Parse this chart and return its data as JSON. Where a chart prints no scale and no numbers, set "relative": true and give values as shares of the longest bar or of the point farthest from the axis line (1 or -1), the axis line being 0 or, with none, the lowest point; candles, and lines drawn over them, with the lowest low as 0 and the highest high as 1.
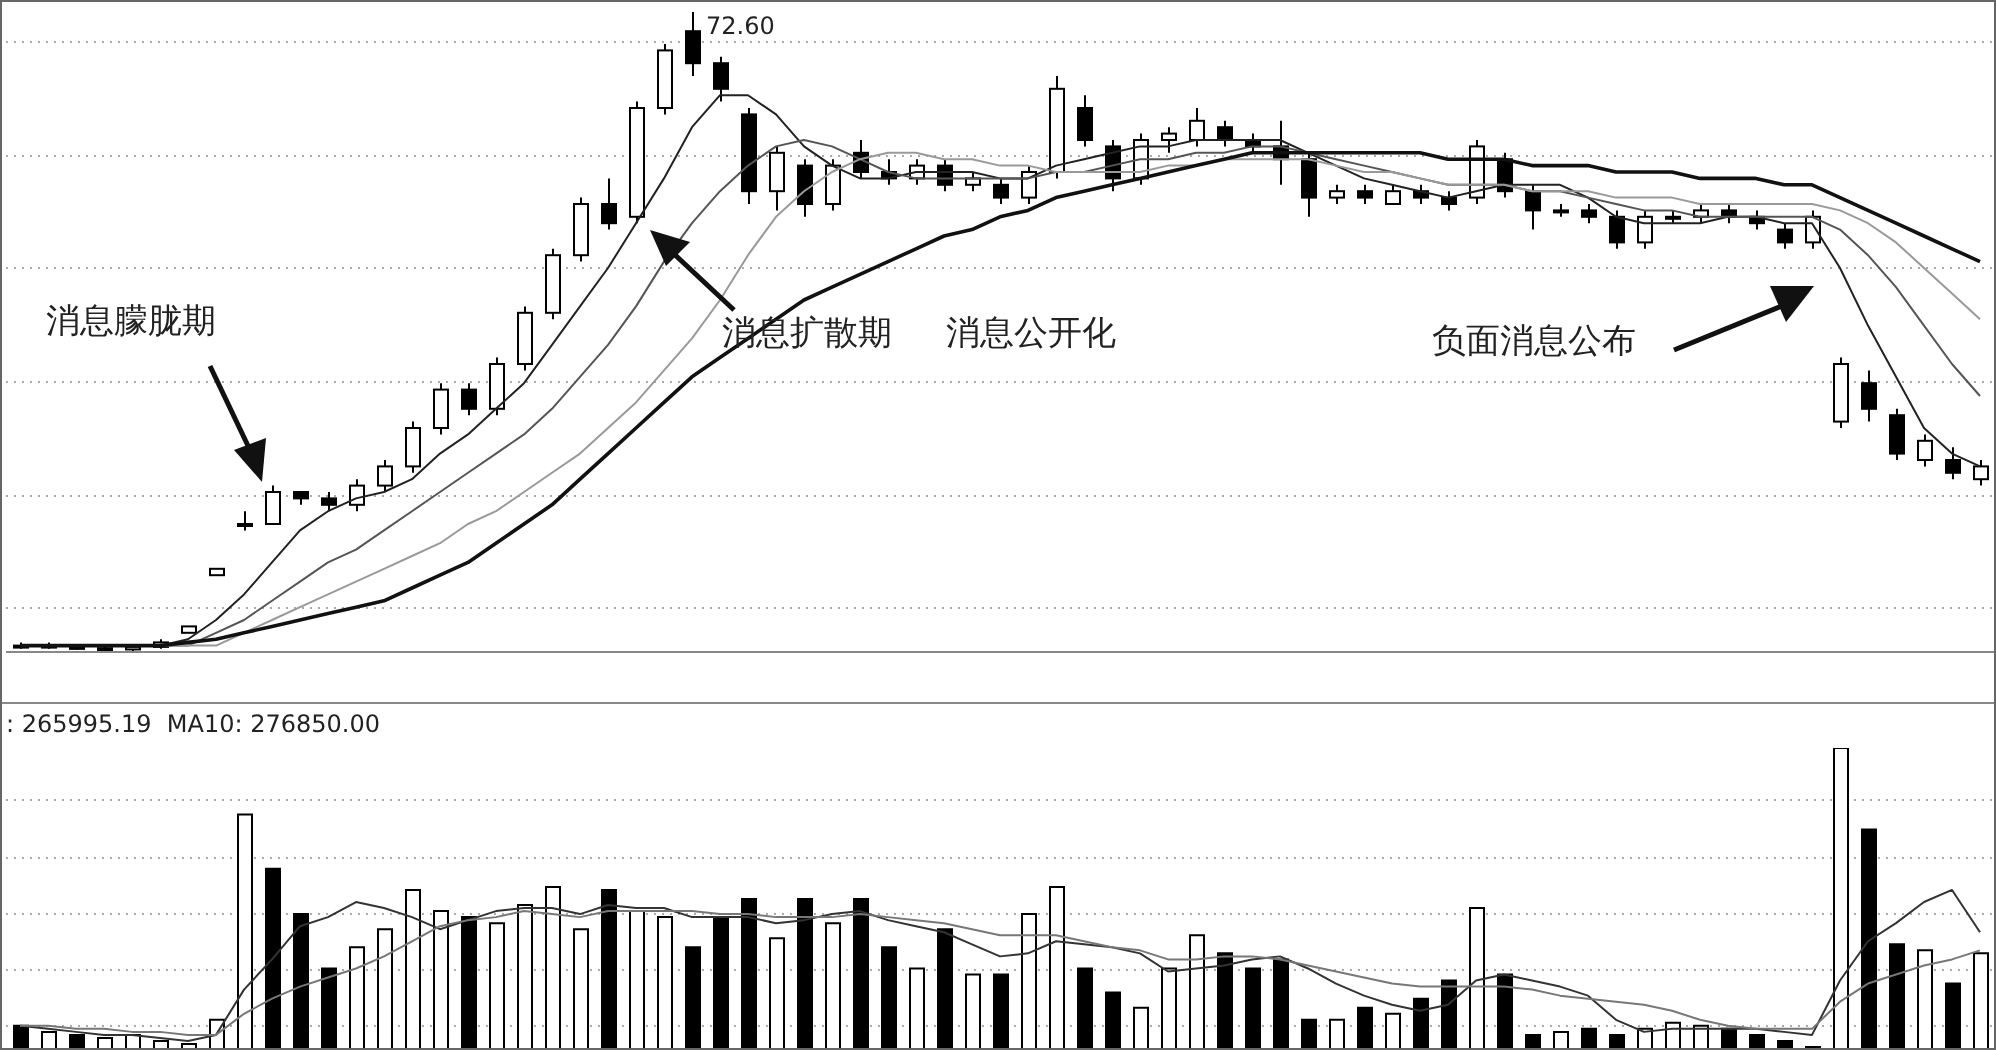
{
  "chart_data": [
    {
      "type": "candlestick",
      "relative": true,
      "grid": "y",
      "categories": [
        null,
        null,
        null,
        null,
        null,
        null,
        null,
        null,
        null,
        null,
        null,
        null,
        null,
        null,
        null,
        null,
        null,
        null,
        null,
        null,
        null,
        null,
        null,
        null,
        null,
        null,
        null,
        null,
        null,
        null,
        null,
        null,
        null,
        null,
        null,
        null,
        null,
        null,
        null,
        null,
        null,
        null,
        null,
        null,
        null,
        null,
        null,
        null,
        null,
        null,
        null,
        null,
        null,
        null,
        null,
        null,
        null,
        null,
        null,
        null,
        null,
        null,
        null,
        null,
        null,
        null,
        null,
        null,
        null,
        null,
        null
      ],
      "annotations": [
        "72.60",
        "消息朦胧期",
        "消息扩散期",
        "消息公开化",
        "负面消息公布"
      ],
      "ohlc": [
        [
          0.01,
          0.015,
          0.005,
          0.01
        ],
        [
          0.01,
          0.015,
          0.005,
          0.008
        ],
        [
          0.008,
          0.012,
          0.004,
          0.006
        ],
        [
          0.006,
          0.01,
          0.0,
          0.004
        ],
        [
          0.004,
          0.01,
          0.0,
          0.008
        ],
        [
          0.008,
          0.02,
          0.005,
          0.015
        ],
        [
          0.03,
          0.04,
          0.03,
          0.04
        ],
        [
          0.12,
          0.13,
          0.12,
          0.13
        ],
        [
          0.2,
          0.22,
          0.19,
          0.2
        ],
        [
          0.2,
          0.26,
          0.2,
          0.25
        ],
        [
          0.25,
          0.25,
          0.23,
          0.24
        ],
        [
          0.24,
          0.25,
          0.22,
          0.23
        ],
        [
          0.23,
          0.27,
          0.22,
          0.26
        ],
        [
          0.26,
          0.3,
          0.25,
          0.29
        ],
        [
          0.29,
          0.36,
          0.28,
          0.35
        ],
        [
          0.35,
          0.42,
          0.34,
          0.41
        ],
        [
          0.41,
          0.42,
          0.37,
          0.38
        ],
        [
          0.38,
          0.46,
          0.37,
          0.45
        ],
        [
          0.45,
          0.54,
          0.44,
          0.53
        ],
        [
          0.53,
          0.63,
          0.52,
          0.62
        ],
        [
          0.62,
          0.71,
          0.61,
          0.7
        ],
        [
          0.7,
          0.74,
          0.66,
          0.67
        ],
        [
          0.68,
          0.86,
          0.67,
          0.85
        ],
        [
          0.85,
          0.95,
          0.84,
          0.94
        ],
        [
          0.97,
          1.0,
          0.9,
          0.92
        ],
        [
          0.92,
          0.93,
          0.86,
          0.88
        ],
        [
          0.84,
          0.85,
          0.7,
          0.72
        ],
        [
          0.72,
          0.79,
          0.69,
          0.78
        ],
        [
          0.76,
          0.77,
          0.68,
          0.7
        ],
        [
          0.7,
          0.77,
          0.69,
          0.76
        ],
        [
          0.78,
          0.8,
          0.74,
          0.75
        ],
        [
          0.75,
          0.77,
          0.73,
          0.74
        ],
        [
          0.74,
          0.77,
          0.73,
          0.76
        ],
        [
          0.76,
          0.77,
          0.72,
          0.73
        ],
        [
          0.73,
          0.75,
          0.72,
          0.74
        ],
        [
          0.73,
          0.74,
          0.7,
          0.71
        ],
        [
          0.71,
          0.76,
          0.7,
          0.75
        ],
        [
          0.75,
          0.9,
          0.74,
          0.88
        ],
        [
          0.85,
          0.87,
          0.79,
          0.8
        ],
        [
          0.79,
          0.8,
          0.72,
          0.74
        ],
        [
          0.74,
          0.81,
          0.73,
          0.8
        ],
        [
          0.8,
          0.82,
          0.78,
          0.81
        ],
        [
          0.8,
          0.85,
          0.79,
          0.83
        ],
        [
          0.82,
          0.83,
          0.79,
          0.8
        ],
        [
          0.8,
          0.81,
          0.78,
          0.79
        ],
        [
          0.79,
          0.83,
          0.73,
          0.77
        ],
        [
          0.77,
          0.78,
          0.68,
          0.71
        ],
        [
          0.71,
          0.73,
          0.7,
          0.72
        ],
        [
          0.72,
          0.73,
          0.7,
          0.71
        ],
        [
          0.7,
          0.73,
          0.7,
          0.72
        ],
        [
          0.72,
          0.73,
          0.7,
          0.71
        ],
        [
          0.71,
          0.72,
          0.69,
          0.7
        ],
        [
          0.71,
          0.8,
          0.7,
          0.79
        ],
        [
          0.77,
          0.78,
          0.71,
          0.72
        ],
        [
          0.72,
          0.73,
          0.66,
          0.69
        ],
        [
          0.69,
          0.7,
          0.68,
          0.69
        ],
        [
          0.69,
          0.7,
          0.67,
          0.68
        ],
        [
          0.68,
          0.69,
          0.63,
          0.64
        ],
        [
          0.64,
          0.69,
          0.63,
          0.68
        ],
        [
          0.68,
          0.69,
          0.67,
          0.68
        ],
        [
          0.68,
          0.7,
          0.67,
          0.69
        ],
        [
          0.69,
          0.7,
          0.67,
          0.68
        ],
        [
          0.68,
          0.69,
          0.66,
          0.67
        ],
        [
          0.66,
          0.67,
          0.63,
          0.64
        ],
        [
          0.64,
          0.69,
          0.63,
          0.68
        ],
        [
          0.36,
          0.46,
          0.35,
          0.45
        ],
        [
          0.42,
          0.44,
          0.36,
          0.38
        ],
        [
          0.37,
          0.38,
          0.3,
          0.31
        ],
        [
          0.3,
          0.34,
          0.29,
          0.33
        ],
        [
          0.3,
          0.32,
          0.27,
          0.28
        ],
        [
          0.27,
          0.3,
          0.26,
          0.29
        ]
      ],
      "series": [
        {
          "type": "line",
          "color": "#222222",
          "values": [
            0.01,
            0.01,
            0.01,
            0.01,
            0.01,
            0.01,
            0.02,
            0.05,
            0.09,
            0.14,
            0.19,
            0.22,
            0.24,
            0.25,
            0.27,
            0.31,
            0.34,
            0.38,
            0.42,
            0.48,
            0.54,
            0.6,
            0.67,
            0.74,
            0.82,
            0.87,
            0.87,
            0.84,
            0.79,
            0.76,
            0.74,
            0.74,
            0.75,
            0.75,
            0.75,
            0.74,
            0.74,
            0.76,
            0.77,
            0.78,
            0.79,
            0.79,
            0.8,
            0.8,
            0.8,
            0.8,
            0.78,
            0.76,
            0.74,
            0.73,
            0.72,
            0.71,
            0.72,
            0.73,
            0.73,
            0.73,
            0.71,
            0.68,
            0.67,
            0.67,
            0.67,
            0.68,
            0.68,
            0.67,
            0.67,
            0.6,
            0.51,
            0.43,
            0.35,
            0.31,
            0.29
          ]
        },
        {
          "type": "line",
          "color": "#555555",
          "values": [
            0.01,
            0.01,
            0.01,
            0.01,
            0.01,
            0.01,
            0.01,
            0.03,
            0.05,
            0.08,
            0.11,
            0.14,
            0.16,
            0.19,
            0.22,
            0.25,
            0.28,
            0.31,
            0.34,
            0.38,
            0.43,
            0.48,
            0.54,
            0.61,
            0.67,
            0.72,
            0.76,
            0.79,
            0.8,
            0.79,
            0.77,
            0.75,
            0.74,
            0.74,
            0.74,
            0.74,
            0.74,
            0.75,
            0.75,
            0.76,
            0.77,
            0.77,
            0.78,
            0.78,
            0.79,
            0.79,
            0.78,
            0.77,
            0.76,
            0.75,
            0.74,
            0.73,
            0.73,
            0.73,
            0.72,
            0.72,
            0.71,
            0.7,
            0.69,
            0.69,
            0.68,
            0.68,
            0.68,
            0.68,
            0.68,
            0.66,
            0.62,
            0.57,
            0.51,
            0.45,
            0.4
          ]
        },
        {
          "type": "line",
          "color": "#999999",
          "values": [
            0.01,
            0.01,
            0.01,
            0.01,
            0.01,
            0.01,
            0.01,
            0.01,
            0.03,
            0.05,
            0.07,
            0.09,
            0.11,
            0.13,
            0.15,
            0.17,
            0.2,
            0.22,
            0.25,
            0.28,
            0.31,
            0.35,
            0.39,
            0.44,
            0.49,
            0.55,
            0.62,
            0.68,
            0.72,
            0.75,
            0.77,
            0.78,
            0.78,
            0.77,
            0.77,
            0.76,
            0.76,
            0.75,
            0.75,
            0.75,
            0.75,
            0.76,
            0.76,
            0.77,
            0.77,
            0.77,
            0.77,
            0.76,
            0.75,
            0.75,
            0.74,
            0.73,
            0.73,
            0.73,
            0.72,
            0.72,
            0.72,
            0.71,
            0.71,
            0.71,
            0.7,
            0.7,
            0.7,
            0.7,
            0.7,
            0.69,
            0.67,
            0.64,
            0.6,
            0.56,
            0.52
          ]
        },
        {
          "type": "line",
          "color": "#111111",
          "values": [
            0.01,
            0.01,
            0.01,
            0.01,
            0.01,
            0.01,
            0.015,
            0.02,
            0.03,
            0.04,
            0.05,
            0.06,
            0.07,
            0.08,
            0.1,
            0.12,
            0.14,
            0.17,
            0.2,
            0.23,
            0.27,
            0.31,
            0.35,
            0.39,
            0.43,
            0.46,
            0.49,
            0.52,
            0.55,
            0.57,
            0.59,
            0.61,
            0.63,
            0.65,
            0.66,
            0.68,
            0.69,
            0.71,
            0.72,
            0.73,
            0.74,
            0.75,
            0.76,
            0.77,
            0.78,
            0.78,
            0.78,
            0.78,
            0.78,
            0.78,
            0.78,
            0.77,
            0.77,
            0.77,
            0.76,
            0.76,
            0.76,
            0.75,
            0.75,
            0.75,
            0.74,
            0.74,
            0.74,
            0.73,
            0.73,
            0.71,
            0.69,
            0.67,
            0.65,
            0.63,
            0.61
          ]
        }
      ]
    },
    {
      "type": "bar",
      "relative": true,
      "grid": "y",
      "categories": [
        null,
        null,
        null,
        null,
        null,
        null,
        null,
        null,
        null,
        null,
        null,
        null,
        null,
        null,
        null,
        null,
        null,
        null,
        null,
        null,
        null,
        null,
        null,
        null,
        null,
        null,
        null,
        null,
        null,
        null,
        null,
        null,
        null,
        null,
        null,
        null,
        null,
        null,
        null,
        null,
        null,
        null,
        null,
        null,
        null,
        null,
        null,
        null,
        null,
        null,
        null,
        null,
        null,
        null,
        null,
        null,
        null,
        null,
        null,
        null,
        null,
        null,
        null,
        null,
        null,
        null,
        null,
        null,
        null,
        null,
        null
      ],
      "annotations": [
        ": 265995.19  MA10: 276850.00"
      ],
      "series": [
        {
          "type": "bar",
          "values": [
            0.08,
            0.06,
            0.05,
            0.04,
            0.05,
            0.03,
            0.02,
            0.1,
            0.78,
            0.6,
            0.45,
            0.27,
            0.34,
            0.4,
            0.53,
            0.46,
            0.44,
            0.42,
            0.48,
            0.54,
            0.4,
            0.53,
            0.46,
            0.44,
            0.34,
            0.44,
            0.5,
            0.37,
            0.5,
            0.42,
            0.5,
            0.34,
            0.27,
            0.4,
            0.25,
            0.25,
            0.45,
            0.54,
            0.27,
            0.19,
            0.14,
            0.27,
            0.38,
            0.32,
            0.27,
            0.3,
            0.1,
            0.1,
            0.14,
            0.12,
            0.17,
            0.23,
            0.47,
            0.25,
            0.05,
            0.06,
            0.07,
            0.05,
            0.07,
            0.09,
            0.08,
            0.07,
            0.05,
            0.03,
            0.01,
            1.0,
            0.73,
            0.35,
            0.33,
            0.22,
            0.32
          ],
          "colors": [
            "#000000",
            "#ffffff",
            "#000000",
            "#ffffff",
            "#ffffff",
            "#ffffff",
            "#ffffff",
            "#ffffff",
            "#ffffff",
            "#000000",
            "#000000",
            "#000000",
            "#ffffff",
            "#ffffff",
            "#ffffff",
            "#ffffff",
            "#000000",
            "#ffffff",
            "#ffffff",
            "#ffffff",
            "#ffffff",
            "#000000",
            "#ffffff",
            "#ffffff",
            "#000000",
            "#000000",
            "#000000",
            "#ffffff",
            "#000000",
            "#ffffff",
            "#000000",
            "#000000",
            "#ffffff",
            "#000000",
            "#ffffff",
            "#000000",
            "#ffffff",
            "#ffffff",
            "#000000",
            "#000000",
            "#ffffff",
            "#ffffff",
            "#ffffff",
            "#000000",
            "#000000",
            "#000000",
            "#000000",
            "#ffffff",
            "#000000",
            "#ffffff",
            "#000000",
            "#000000",
            "#ffffff",
            "#000000",
            "#000000",
            "#ffffff",
            "#000000",
            "#000000",
            "#ffffff",
            "#ffffff",
            "#ffffff",
            "#000000",
            "#000000",
            "#000000",
            "#ffffff",
            "#ffffff",
            "#000000",
            "#000000",
            "#ffffff",
            "#000000",
            "#ffffff"
          ]
        },
        {
          "type": "line",
          "color": "#333333",
          "values": [
            0.08,
            0.07,
            0.06,
            0.05,
            0.05,
            0.04,
            0.03,
            0.05,
            0.2,
            0.3,
            0.41,
            0.44,
            0.49,
            0.47,
            0.44,
            0.4,
            0.43,
            0.46,
            0.47,
            0.47,
            0.45,
            0.48,
            0.47,
            0.47,
            0.44,
            0.44,
            0.44,
            0.42,
            0.43,
            0.45,
            0.46,
            0.43,
            0.41,
            0.39,
            0.35,
            0.31,
            0.32,
            0.36,
            0.35,
            0.34,
            0.32,
            0.26,
            0.27,
            0.28,
            0.3,
            0.31,
            0.27,
            0.22,
            0.18,
            0.15,
            0.13,
            0.15,
            0.23,
            0.25,
            0.23,
            0.21,
            0.18,
            0.1,
            0.06,
            0.07,
            0.07,
            0.07,
            0.07,
            0.06,
            0.05,
            0.23,
            0.36,
            0.42,
            0.49,
            0.53,
            0.39
          ]
        },
        {
          "type": "line",
          "color": "#777777",
          "values": [
            0.08,
            0.08,
            0.07,
            0.07,
            0.06,
            0.06,
            0.05,
            0.05,
            0.12,
            0.17,
            0.21,
            0.24,
            0.27,
            0.31,
            0.36,
            0.41,
            0.43,
            0.44,
            0.46,
            0.45,
            0.44,
            0.46,
            0.46,
            0.46,
            0.46,
            0.45,
            0.45,
            0.44,
            0.44,
            0.44,
            0.45,
            0.44,
            0.43,
            0.42,
            0.4,
            0.38,
            0.38,
            0.38,
            0.36,
            0.34,
            0.33,
            0.3,
            0.3,
            0.31,
            0.31,
            0.3,
            0.28,
            0.26,
            0.24,
            0.22,
            0.21,
            0.21,
            0.21,
            0.21,
            0.2,
            0.18,
            0.17,
            0.16,
            0.15,
            0.13,
            0.1,
            0.08,
            0.07,
            0.07,
            0.07,
            0.16,
            0.22,
            0.25,
            0.28,
            0.3,
            0.33
          ]
        }
      ]
    }
  ]
}
